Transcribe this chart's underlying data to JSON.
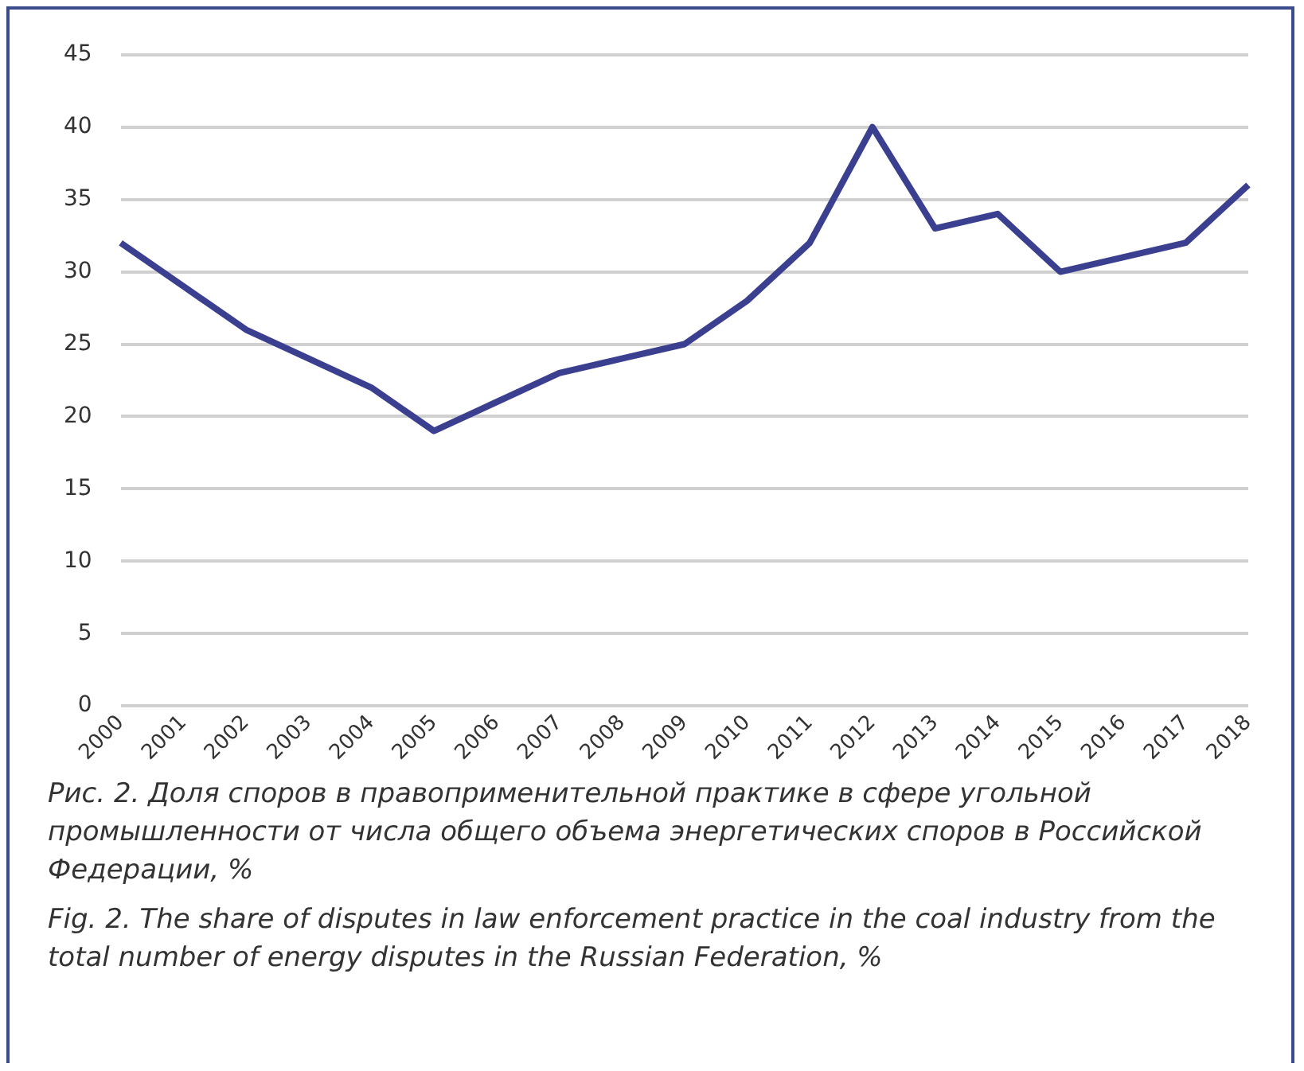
{
  "chart_data": {
    "type": "line",
    "categories": [
      "2000",
      "2001",
      "2002",
      "2003",
      "2004",
      "2005",
      "2006",
      "2007",
      "2008",
      "2009",
      "2010",
      "2011",
      "2012",
      "2013",
      "2014",
      "2015",
      "2016",
      "2017",
      "2018"
    ],
    "series": [
      {
        "color": "#3b3f8f",
        "values": [
          32,
          29,
          26,
          24,
          22,
          19,
          21,
          23,
          24,
          25,
          28,
          32,
          40,
          33,
          34,
          30,
          31,
          32,
          36
        ]
      }
    ],
    "ylim": [
      0,
      45
    ],
    "yticks": [
      0,
      5,
      10,
      15,
      20,
      25,
      30,
      35,
      40,
      45
    ],
    "grid": "y",
    "legend": false,
    "marker": "none",
    "line_style": "solid",
    "annotations": [
      "Рис. 2. Доля споров в правоприменительной практике в сфере угольной промышленности от числа общего объема энергетических споров в Российской Федерации, %",
      "Fig. 2. The share of disputes in law enforcement practice in the coal industry from the total number of energy disputes in the Russian Federation, %"
    ]
  }
}
